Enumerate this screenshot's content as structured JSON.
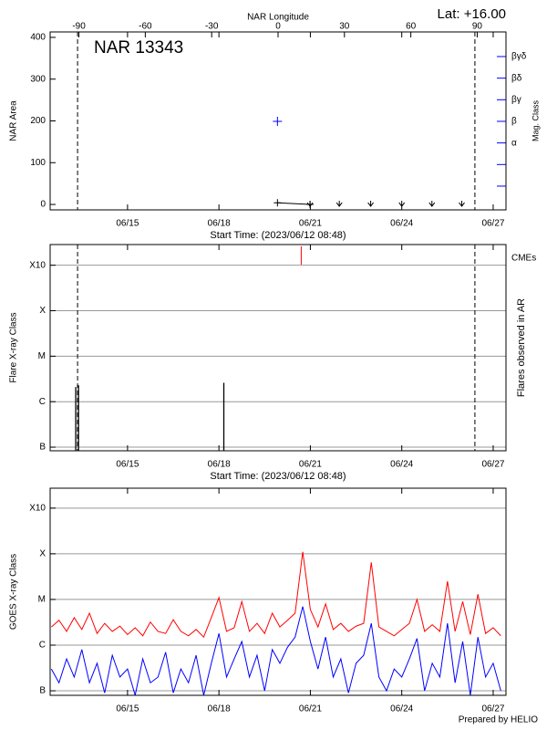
{
  "footer": "Prepared by HELIO",
  "chart_data": [
    {
      "type": "line",
      "title": "NAR 13343",
      "subtitle": "Lat: +16.00",
      "top_label": "NAR Longitude",
      "x_label": "Start Time: (2023/06/12 08:48)",
      "y_label": "NAR Area",
      "y2_label": "Mag. Class",
      "xlim": [
        12.46,
        27.42
      ],
      "xticks": [
        {
          "value": 15,
          "label": "06/15"
        },
        {
          "value": 18,
          "label": "06/18"
        },
        {
          "value": 21,
          "label": "06/21"
        },
        {
          "value": 24,
          "label": "06/24"
        },
        {
          "value": 27,
          "label": "06/27"
        }
      ],
      "top_xlim": [
        -103,
        103
      ],
      "top_xticks": [
        -90,
        -60,
        -30,
        0,
        30,
        60,
        90
      ],
      "ylim": [
        -13,
        413
      ],
      "yticks": [
        0,
        100,
        200,
        300,
        400
      ],
      "y2lim": [
        -1.1,
        7.14
      ],
      "y2_categories": [
        null,
        null,
        "α",
        "β",
        "βγ",
        "βδ",
        "βγδ"
      ],
      "y2_color": "#0000ff",
      "limb_lines": [
        13.36,
        26.4
      ],
      "series": [
        {
          "color": "#000000",
          "marker": "plus",
          "line": true,
          "x": [
            19.92,
            20.99
          ],
          "values": [
            4,
            0
          ]
        },
        {
          "color": "#000000",
          "marker": "arrow",
          "line": false,
          "x": [
            20.99,
            21.95,
            22.98,
            24.0,
            24.99,
            25.97
          ],
          "values": [
            0,
            0,
            0,
            0,
            0,
            0
          ]
        }
      ],
      "mag_class": {
        "color": "#0000ff",
        "marker": "plus",
        "x": [
          19.92
        ],
        "values": [
          "β"
        ]
      }
    },
    {
      "type": "bar",
      "x_label": "Start Time: (2023/06/12 08:48)",
      "y_label": "Flare X-ray Class",
      "y2_label": "Flares observed in AR",
      "xlim": [
        12.46,
        27.42
      ],
      "xticks": [
        {
          "value": 15,
          "label": "06/15"
        },
        {
          "value": 18,
          "label": "06/18"
        },
        {
          "value": 21,
          "label": "06/21"
        },
        {
          "value": 24,
          "label": "06/24"
        },
        {
          "value": 27,
          "label": "06/27"
        }
      ],
      "ylog": true,
      "ylim": [
        8.33e-08,
        0.00285
      ],
      "yticks": [
        {
          "value": 1e-07,
          "label": "B"
        },
        {
          "value": 1e-06,
          "label": "C"
        },
        {
          "value": 1e-05,
          "label": "M"
        },
        {
          "value": 0.0001,
          "label": "X"
        },
        {
          "value": 0.001,
          "label": "X10"
        }
      ],
      "grid": true,
      "limb_lines": [
        13.36,
        26.4
      ],
      "color": "#000000",
      "x": [
        13.3,
        13.39,
        18.16
      ],
      "values": [
        2.1e-06,
        2.3e-06,
        2.6e-06
      ],
      "cmes": {
        "name": "CMEs",
        "color": "#ff0000",
        "x": [
          20.7
        ]
      }
    },
    {
      "type": "line",
      "y_label": "GOES X-ray Class",
      "xlim": [
        12.46,
        27.42
      ],
      "xticks": [
        {
          "value": 15,
          "label": "06/15"
        },
        {
          "value": 18,
          "label": "06/18"
        },
        {
          "value": 21,
          "label": "06/21"
        },
        {
          "value": 24,
          "label": "06/24"
        },
        {
          "value": 27,
          "label": "06/27"
        }
      ],
      "ylog": true,
      "ylim": [
        7.96e-08,
        0.00273
      ],
      "yticks": [
        {
          "value": 1e-07,
          "label": "B"
        },
        {
          "value": 1e-06,
          "label": "C"
        },
        {
          "value": 1e-05,
          "label": "M"
        },
        {
          "value": 0.0001,
          "label": "X"
        },
        {
          "value": 0.001,
          "label": "X10"
        }
      ],
      "grid": true,
      "x": [
        12.5,
        12.75,
        13,
        13.25,
        13.5,
        13.75,
        14,
        14.25,
        14.5,
        14.75,
        15,
        15.25,
        15.5,
        15.75,
        16,
        16.25,
        16.5,
        16.75,
        17,
        17.25,
        17.5,
        17.75,
        18,
        18.25,
        18.5,
        18.75,
        19,
        19.25,
        19.5,
        19.75,
        20,
        20.25,
        20.5,
        20.75,
        21,
        21.25,
        21.5,
        21.75,
        22,
        22.25,
        22.5,
        22.75,
        23,
        23.25,
        23.5,
        23.75,
        24,
        24.25,
        24.5,
        24.75,
        25,
        25.25,
        25.5,
        25.75,
        26,
        26.25,
        26.5,
        26.75,
        27,
        27.25
      ],
      "series": [
        {
          "color": "#ff0000",
          "line": true,
          "values": [
            2.5e-06,
            3.5e-06,
            2e-06,
            4e-06,
            2.2e-06,
            5e-06,
            1.8e-06,
            3e-06,
            2e-06,
            2.6e-06,
            1.7e-06,
            2.4e-06,
            1.6e-06,
            3.2e-06,
            2e-06,
            1.8e-06,
            3.6e-06,
            2e-06,
            1.6e-06,
            2.2e-06,
            1.5e-06,
            4e-06,
            1.1e-05,
            2e-06,
            2.4e-06,
            9e-06,
            2e-06,
            3e-06,
            1.8e-06,
            5e-06,
            2.5e-06,
            3.5e-06,
            5e-06,
            0.00011,
            6e-06,
            2.5e-06,
            8e-06,
            2.2e-06,
            3e-06,
            2e-06,
            2.6e-06,
            3e-06,
            6.5e-05,
            2.5e-06,
            2e-06,
            1.6e-06,
            2.2e-06,
            3e-06,
            1e-05,
            2e-06,
            2.8e-06,
            2e-06,
            2.5e-05,
            2e-06,
            9e-06,
            1.7e-06,
            1.3e-05,
            1.8e-06,
            2.4e-06,
            1.6e-06
          ]
        },
        {
          "color": "#0000ff",
          "line": true,
          "values": [
            3e-07,
            1.5e-07,
            5e-07,
            2e-07,
            8e-07,
            1.5e-07,
            4e-07,
            9e-08,
            6e-07,
            2e-07,
            3e-07,
            8e-08,
            5e-07,
            1.5e-07,
            2e-07,
            7e-07,
            9e-08,
            3e-07,
            1.5e-07,
            6e-07,
            8e-08,
            4e-07,
            1.8e-06,
            2e-07,
            5e-07,
            1.2e-06,
            2e-07,
            6e-07,
            1e-07,
            8e-07,
            4e-07,
            9e-07,
            1.5e-06,
            7e-06,
            1.2e-06,
            3e-07,
            1.5e-06,
            2e-07,
            5e-07,
            9e-08,
            4e-07,
            6e-07,
            3e-06,
            2e-07,
            1e-07,
            3e-07,
            2e-07,
            5e-07,
            1.4e-06,
            1e-07,
            4e-07,
            2e-07,
            3e-06,
            1.5e-07,
            1.2e-06,
            8e-08,
            1.5e-06,
            2e-07,
            4e-07,
            1e-07
          ]
        }
      ]
    }
  ]
}
